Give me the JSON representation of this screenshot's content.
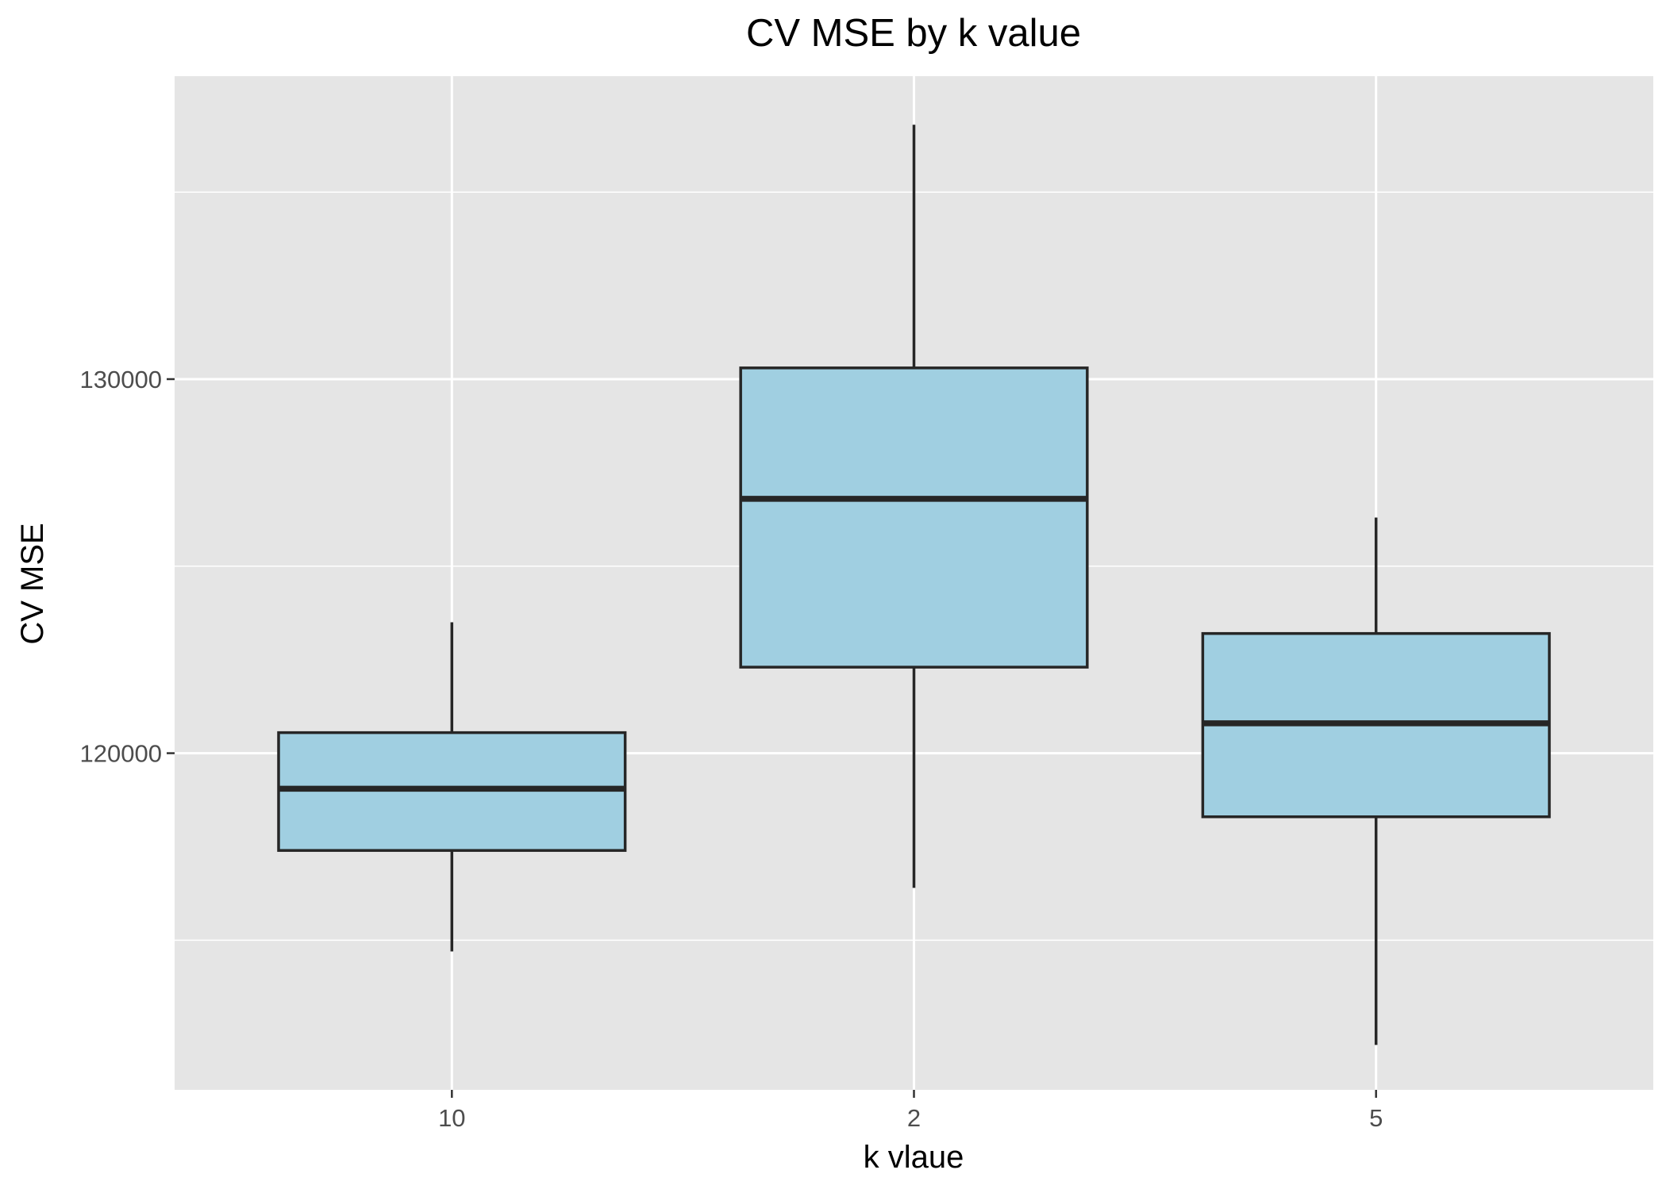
{
  "chart_data": {
    "type": "boxplot",
    "title": "CV MSE by k value",
    "xlabel": "k vlaue",
    "ylabel": "CV MSE",
    "categories": [
      "10",
      "2",
      "5"
    ],
    "boxes": [
      {
        "category": "10",
        "min": 114700,
        "q1": 117400,
        "median": 119050,
        "q3": 120550,
        "max": 123500
      },
      {
        "category": "2",
        "min": 116400,
        "q1": 122300,
        "median": 126800,
        "q3": 130300,
        "max": 136800
      },
      {
        "category": "5",
        "min": 112200,
        "q1": 118300,
        "median": 120800,
        "q3": 123200,
        "max": 126300
      }
    ],
    "ylim": [
      111000,
      138100
    ],
    "yticks": [
      120000,
      130000
    ],
    "yticks_minor": [
      115000,
      125000,
      135000
    ],
    "grid": true,
    "colors": {
      "panel_background": "#e5e5e5",
      "grid": "#ffffff",
      "box_fill": "#a0cfe1",
      "box_stroke": "#262626",
      "tick_text": "#4d4d4d"
    }
  }
}
